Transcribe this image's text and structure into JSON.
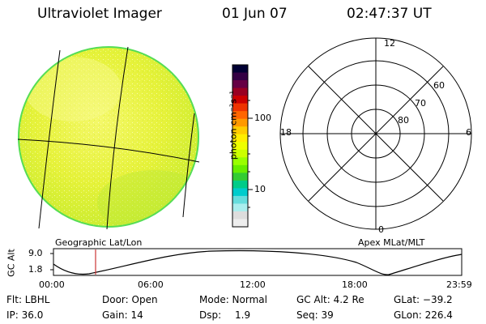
{
  "header": {
    "title": "Ultraviolet Imager",
    "date": "01 Jun 07",
    "time": "02:47:37 UT"
  },
  "globe": {
    "label": "Geographic Lat/Lon"
  },
  "colorbar": {
    "unit_label": "photon cm⁻²s⁻¹",
    "ticks": [
      "100",
      "10"
    ],
    "colors": [
      "#000033",
      "#330044",
      "#660044",
      "#990022",
      "#cc0000",
      "#ee3300",
      "#ff6600",
      "#ff9900",
      "#ffcc00",
      "#ffee00",
      "#eeff00",
      "#ccff00",
      "#99ff00",
      "#66ee00",
      "#33cc33",
      "#00cc88",
      "#00cccc",
      "#66dddd",
      "#aaeeee",
      "#dddddd",
      "#eeeeee"
    ]
  },
  "polar": {
    "label": "Apex MLat/MLT",
    "mlt_labels": {
      "top": "12",
      "left": "18",
      "right": "6",
      "bottom": "0"
    },
    "lat_labels": [
      "60",
      "70",
      "80"
    ]
  },
  "altitude_panel": {
    "ylabel": "GC Alt",
    "yticks": [
      "9.0",
      "1.8"
    ],
    "xticks": [
      "00:00",
      "06:00",
      "12:00",
      "18:00",
      "23:59"
    ],
    "marker_time": "02:47"
  },
  "info": {
    "filter": "Flt: LBHL",
    "door": "Door: Open",
    "mode": "Mode: Normal",
    "gc_alt": "GC Alt: 4.2 Re",
    "glat": "GLat: −39.2",
    "ip": "IP: 36.0",
    "gain": "Gain: 14",
    "dsp_label": "Dsp:",
    "dsp_value": "1.9",
    "seq": "Seq: 39",
    "glon": "GLon: 226.4"
  },
  "colors": {
    "globe_fill": "#e8f040",
    "globe_edge": "#66dd44",
    "marker": "#cc3333"
  }
}
